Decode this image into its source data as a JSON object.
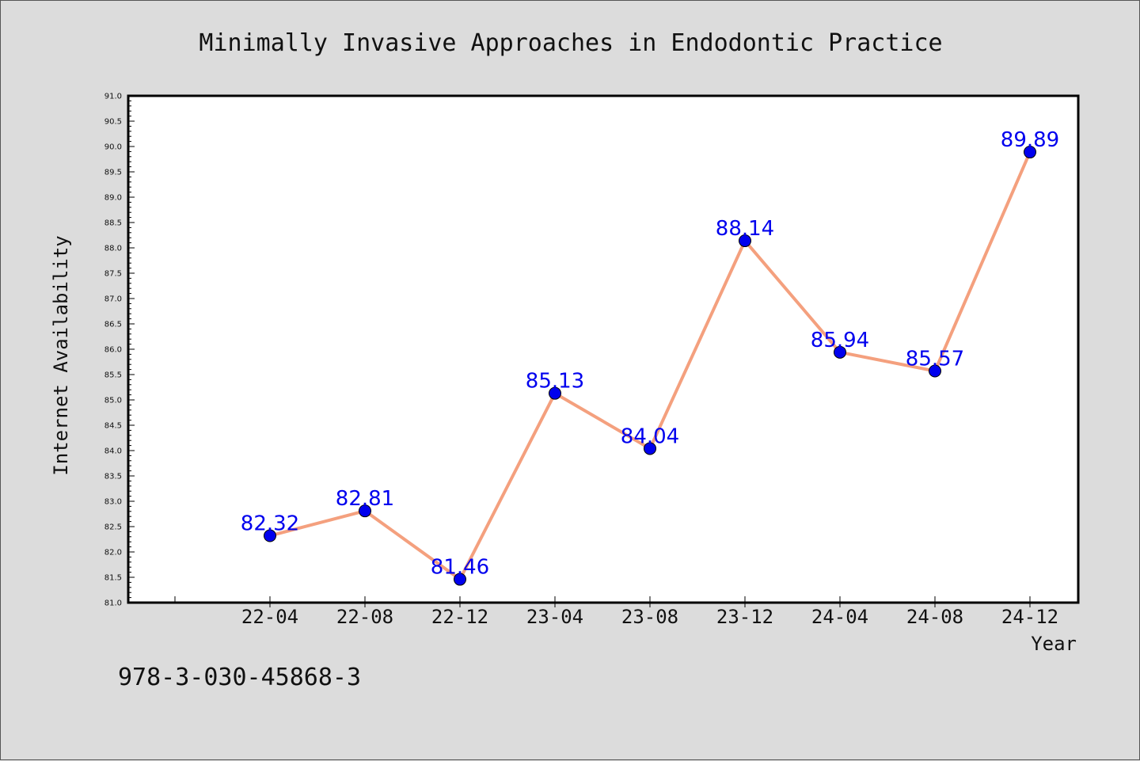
{
  "chart_data": {
    "type": "line",
    "title": "Minimally Invasive Approaches in Endodontic Practice",
    "xlabel": "Year",
    "ylabel": "Internet Availability",
    "categories": [
      "22-04",
      "22-08",
      "22-12",
      "23-04",
      "23-08",
      "23-12",
      "24-04",
      "24-08",
      "24-12"
    ],
    "series": [
      {
        "values": [
          82.32,
          82.81,
          81.46,
          85.13,
          84.04,
          88.14,
          85.94,
          85.57,
          89.89
        ],
        "data_labels": [
          "82.32",
          "82.81",
          "81.46",
          "85.13",
          "84.04",
          "88.14",
          "85.94",
          "85.57",
          "89.89"
        ]
      }
    ],
    "ylim": [
      81.0,
      91.0
    ],
    "yticks": [
      "81.0",
      "81.5",
      "82.0",
      "82.5",
      "83.0",
      "83.5",
      "84.0",
      "84.5",
      "85.0",
      "85.5",
      "86.0",
      "86.5",
      "87.0",
      "87.5",
      "88.0",
      "88.5",
      "89.0",
      "89.5",
      "90.0",
      "90.5",
      "91.0"
    ],
    "grid": false,
    "line_color": "#f4a07e",
    "marker_color": "#0000ee",
    "label_color": "#0000ee"
  },
  "footer": {
    "isbn": "978-3-030-45868-3"
  }
}
